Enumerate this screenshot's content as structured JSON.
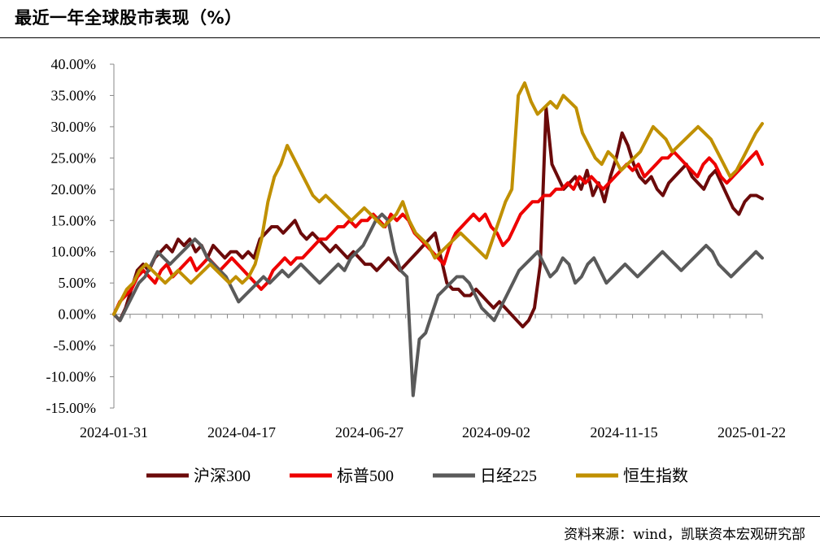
{
  "title": "最近一年全球股市表现（%）",
  "source": "资料来源：wind，凯联资本宏观研究部",
  "chart_data": {
    "type": "line",
    "title": "最近一年全球股市表现（%）",
    "ylim": [
      -15,
      40
    ],
    "y_ticks": [
      40,
      35,
      30,
      25,
      20,
      15,
      10,
      5,
      0,
      -5,
      -10,
      -15
    ],
    "y_tick_labels": [
      "40.00%",
      "35.00%",
      "30.00%",
      "25.00%",
      "20.00%",
      "15.00%",
      "10.00%",
      "5.00%",
      "0.00%",
      "-5.00%",
      "-10.00%",
      "-15.00%"
    ],
    "x_tick_labels": [
      "2024-01-31",
      "2024-04-17",
      "2024-06-27",
      "2024-09-02",
      "2024-11-15",
      "2025-01-22"
    ],
    "legend_position": "bottom",
    "grid": false,
    "series": [
      {
        "name": "沪深300",
        "color": "#6b0a0a",
        "values": [
          0,
          -1,
          1,
          4,
          7,
          8,
          7,
          9,
          10,
          11,
          10,
          12,
          11,
          12,
          10,
          11,
          9,
          11,
          10,
          9,
          10,
          10,
          9,
          10,
          9,
          12,
          13,
          14,
          14,
          13,
          14,
          15,
          13,
          12,
          13,
          12,
          11,
          10,
          11,
          10,
          9,
          10,
          9,
          8,
          8,
          7,
          8,
          9,
          8,
          7,
          8,
          9,
          10,
          11,
          12,
          13,
          9,
          5,
          4,
          4,
          3,
          3,
          4,
          3,
          2,
          1,
          2,
          1,
          0,
          -1,
          -2,
          -1,
          1,
          8,
          33,
          24,
          22,
          20,
          21,
          22,
          20,
          23,
          19,
          21,
          18,
          22,
          25,
          29,
          27,
          24,
          22,
          21,
          22,
          20,
          19,
          21,
          22,
          23,
          24,
          22,
          21,
          20,
          22,
          23,
          21,
          19,
          17,
          16,
          18,
          19,
          19,
          18.5
        ]
      },
      {
        "name": "标普500",
        "color": "#ee0000",
        "values": [
          0,
          2,
          3,
          4,
          6,
          7,
          6,
          5,
          7,
          8,
          6,
          7,
          8,
          9,
          7,
          8,
          9,
          8,
          7,
          8,
          9,
          8,
          7,
          6,
          5,
          4,
          5,
          7,
          8,
          9,
          8,
          9,
          9,
          10,
          11,
          12,
          12,
          13,
          14,
          14,
          15,
          14,
          15,
          15,
          16,
          15,
          14,
          16,
          15,
          16,
          15,
          13,
          12,
          11,
          10,
          9,
          8,
          11,
          13,
          14,
          15,
          16,
          15,
          16,
          14,
          13,
          11,
          12,
          14,
          16,
          17,
          18,
          18,
          19,
          19,
          20,
          20,
          21,
          20,
          22,
          21,
          22,
          21,
          20,
          21,
          22,
          23,
          24,
          23,
          24,
          22,
          23,
          24,
          25,
          25,
          26,
          25,
          24,
          23,
          22,
          24,
          25,
          24,
          22,
          21,
          22,
          23,
          24,
          25,
          26,
          24
        ]
      },
      {
        "name": "日经225",
        "color": "#5a5a5a",
        "values": [
          0,
          -1,
          1,
          3,
          5,
          6,
          8,
          10,
          9,
          8,
          9,
          10,
          11,
          12,
          11,
          9,
          8,
          7,
          6,
          4,
          2,
          3,
          4,
          5,
          6,
          5,
          6,
          7,
          6,
          7,
          8,
          7,
          6,
          5,
          6,
          7,
          8,
          7,
          9,
          10,
          11,
          13,
          15,
          16,
          15,
          10,
          7,
          6,
          -13,
          -4,
          -3,
          0,
          3,
          4,
          5,
          6,
          6,
          5,
          3,
          1,
          0,
          -1,
          1,
          3,
          5,
          7,
          8,
          9,
          10,
          8,
          6,
          7,
          9,
          8,
          5,
          6,
          8,
          9,
          7,
          5,
          6,
          7,
          8,
          7,
          6,
          7,
          8,
          9,
          10,
          9,
          8,
          7,
          8,
          9,
          10,
          11,
          10,
          8,
          7,
          6,
          7,
          8,
          9,
          10,
          9
        ]
      },
      {
        "name": "恒生指数",
        "color": "#c09000",
        "values": [
          0,
          2,
          4,
          5,
          7,
          8,
          7,
          6,
          5,
          6,
          7,
          6,
          5,
          6,
          7,
          8,
          7,
          6,
          5,
          6,
          5,
          6,
          8,
          12,
          18,
          22,
          24,
          27,
          25,
          23,
          21,
          19,
          18,
          19,
          18,
          17,
          16,
          15,
          16,
          17,
          16,
          15,
          14,
          15,
          16,
          18,
          15,
          13,
          12,
          11,
          9,
          10,
          11,
          12,
          13,
          12,
          11,
          10,
          9,
          12,
          15,
          18,
          20,
          35,
          37,
          34,
          32,
          33,
          34,
          33,
          35,
          34,
          33,
          29,
          27,
          25,
          24,
          26,
          25,
          23,
          24,
          25,
          26,
          28,
          30,
          29,
          28,
          26,
          27,
          28,
          29,
          30,
          29,
          28,
          26,
          24,
          22,
          23,
          25,
          27,
          29,
          30.5
        ]
      }
    ]
  }
}
